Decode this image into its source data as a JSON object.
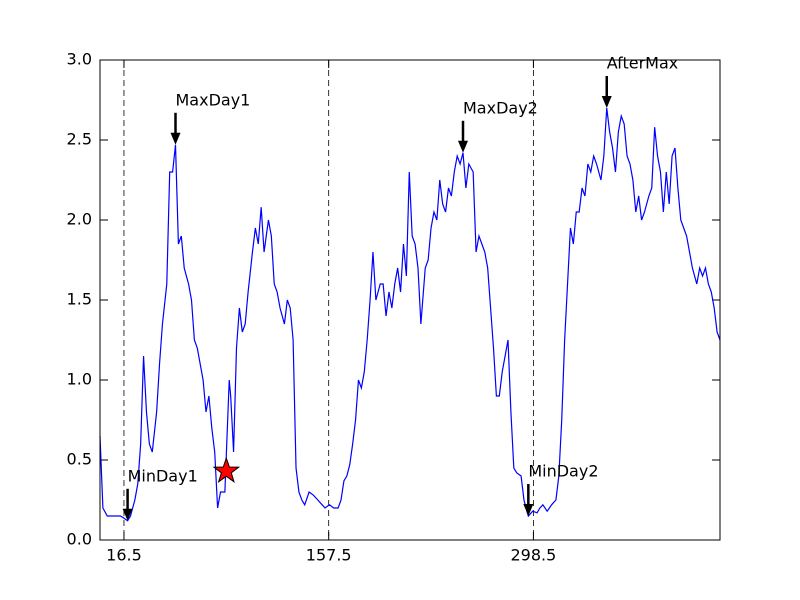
{
  "chart_data": {
    "type": "line",
    "x": [
      0,
      2,
      5,
      10,
      14,
      16,
      19,
      21,
      24,
      26,
      28,
      30,
      32,
      34,
      36,
      39,
      41,
      43,
      46,
      48,
      50,
      52,
      54,
      56,
      58,
      61,
      63,
      65,
      67,
      69,
      71,
      73,
      75,
      77,
      79,
      81,
      83,
      86,
      89,
      90,
      92,
      94,
      96,
      98,
      100,
      102,
      105,
      107,
      109,
      111,
      113,
      116,
      118,
      120,
      122,
      124,
      127,
      129,
      131,
      133,
      135,
      137,
      139,
      141,
      144,
      147,
      150,
      153,
      155,
      158,
      161,
      164,
      166,
      168,
      170,
      172,
      174,
      176,
      178,
      180,
      182,
      184,
      186,
      188,
      190,
      193,
      195,
      197,
      199,
      201,
      203,
      205,
      207,
      209,
      211,
      213,
      215,
      217,
      219,
      221,
      224,
      226,
      228,
      230,
      232,
      234,
      236,
      238,
      240,
      242,
      244,
      246,
      248,
      250,
      252,
      254,
      257,
      259,
      261,
      263,
      265,
      267,
      269,
      271,
      273,
      275,
      277,
      279,
      281,
      283,
      285,
      287,
      290,
      292,
      294,
      295,
      298,
      301,
      303,
      305,
      308,
      311,
      314,
      316,
      318,
      320,
      322,
      324,
      326,
      328,
      330,
      332,
      334,
      336,
      338,
      340,
      342,
      345,
      347,
      349,
      351,
      353,
      355,
      357,
      359,
      361,
      363,
      365,
      367,
      369,
      371,
      373,
      375,
      378,
      380,
      382,
      384,
      386,
      388,
      390,
      392,
      394,
      396,
      398,
      400,
      402,
      404,
      406,
      408,
      411,
      413,
      415,
      417,
      419,
      421,
      423,
      425,
      427
    ],
    "series": [
      {
        "color": "#0000ff",
        "values": [
          0.65,
          0.2,
          0.15,
          0.15,
          0.15,
          0.14,
          0.12,
          0.15,
          0.25,
          0.35,
          0.6,
          1.15,
          0.8,
          0.6,
          0.55,
          0.8,
          1.1,
          1.35,
          1.6,
          2.3,
          2.3,
          2.47,
          1.85,
          1.9,
          1.7,
          1.6,
          1.5,
          1.25,
          1.2,
          1.1,
          1.0,
          0.8,
          0.9,
          0.7,
          0.55,
          0.2,
          0.3,
          0.3,
          1.0,
          0.9,
          0.55,
          1.2,
          1.45,
          1.3,
          1.35,
          1.55,
          1.8,
          1.95,
          1.85,
          2.08,
          1.8,
          2.0,
          1.9,
          1.6,
          1.55,
          1.45,
          1.35,
          1.5,
          1.45,
          1.25,
          0.45,
          0.3,
          0.25,
          0.22,
          0.3,
          0.28,
          0.25,
          0.22,
          0.2,
          0.22,
          0.2,
          0.2,
          0.25,
          0.37,
          0.4,
          0.47,
          0.6,
          0.75,
          1.0,
          0.95,
          1.05,
          1.25,
          1.5,
          1.8,
          1.5,
          1.6,
          1.6,
          1.4,
          1.55,
          1.45,
          1.6,
          1.7,
          1.55,
          1.85,
          1.65,
          2.3,
          1.9,
          1.85,
          1.7,
          1.35,
          1.7,
          1.75,
          1.95,
          2.05,
          2.0,
          2.25,
          2.1,
          2.05,
          2.2,
          2.15,
          2.3,
          2.4,
          2.35,
          2.42,
          2.2,
          2.35,
          2.3,
          1.8,
          1.9,
          1.85,
          1.8,
          1.7,
          1.45,
          1.2,
          0.9,
          0.9,
          1.05,
          1.15,
          1.25,
          0.8,
          0.45,
          0.42,
          0.4,
          0.25,
          0.18,
          0.15,
          0.18,
          0.17,
          0.2,
          0.22,
          0.18,
          0.22,
          0.25,
          0.4,
          0.75,
          1.25,
          1.6,
          1.95,
          1.85,
          2.05,
          2.05,
          2.2,
          2.15,
          2.35,
          2.3,
          2.4,
          2.35,
          2.25,
          2.4,
          2.7,
          2.55,
          2.45,
          2.3,
          2.55,
          2.65,
          2.6,
          2.4,
          2.35,
          2.25,
          2.05,
          2.15,
          2.0,
          2.05,
          2.15,
          2.2,
          2.58,
          2.4,
          2.3,
          2.05,
          2.3,
          2.1,
          2.4,
          2.45,
          2.2,
          2.0,
          1.95,
          1.9,
          1.8,
          1.7,
          1.6,
          1.7,
          1.65,
          1.7,
          1.6,
          1.55,
          1.45,
          1.3,
          1.25
        ]
      }
    ],
    "xlim": [
      0,
      427
    ],
    "xticks": [
      16.5,
      157.5,
      298.5
    ],
    "xgrid": true,
    "ylim": [
      0,
      3
    ],
    "yticks": [
      {
        "value": 0,
        "label": "0.0"
      },
      {
        "value": 0.5,
        "label": "0.5"
      },
      {
        "value": 1,
        "label": "1.0"
      },
      {
        "value": 1.5,
        "label": "1.5"
      },
      {
        "value": 2,
        "label": "2.0"
      },
      {
        "value": 2.5,
        "label": "2.5"
      },
      {
        "value": 3,
        "label": "3.0"
      }
    ],
    "annotations": [
      {
        "text": "MinDay1",
        "x": 19,
        "y": 0.12
      },
      {
        "text": "MaxDay1",
        "x": 52,
        "y": 2.47
      },
      {
        "text": "MaxDay2",
        "x": 250,
        "y": 2.42
      },
      {
        "text": "MinDay2",
        "x": 295,
        "y": 0.15
      },
      {
        "text": "AfterMax",
        "x": 349,
        "y": 2.7
      }
    ],
    "markers": [
      {
        "x": 87,
        "y": 0.43,
        "color": "#ff0000"
      }
    ]
  }
}
